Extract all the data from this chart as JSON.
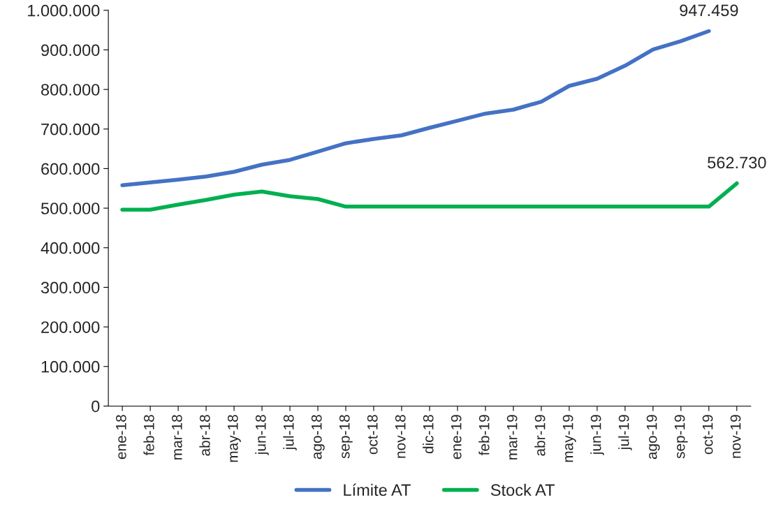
{
  "chart_data": {
    "type": "line",
    "categories": [
      "ene-18",
      "feb-18",
      "mar-18",
      "abr-18",
      "may-18",
      "jun-18",
      "jul-18",
      "ago-18",
      "sep-18",
      "oct-18",
      "nov-18",
      "dic-18",
      "ene-19",
      "feb-19",
      "mar-19",
      "abr-19",
      "may-19",
      "jun-19",
      "jul-19",
      "ago-19",
      "sep-19",
      "oct-19",
      "nov-19"
    ],
    "series": [
      {
        "name": "Límite AT",
        "color": "#4472c4",
        "values": [
          558000,
          565000,
          572000,
          580000,
          592000,
          610000,
          622000,
          643000,
          664000,
          675000,
          684000,
          703000,
          721000,
          739000,
          749000,
          769000,
          809000,
          827000,
          860000,
          901000,
          922000,
          947459,
          null
        ],
        "value_labels": [
          null,
          null,
          null,
          null,
          null,
          null,
          null,
          null,
          null,
          null,
          null,
          null,
          null,
          null,
          null,
          null,
          null,
          null,
          null,
          null,
          null,
          "947.459",
          null
        ]
      },
      {
        "name": "Stock AT",
        "color": "#00b050",
        "values": [
          496000,
          496000,
          509000,
          521000,
          534000,
          542000,
          530000,
          523000,
          504000,
          504000,
          504000,
          504000,
          504000,
          504000,
          504000,
          504000,
          504000,
          504000,
          504000,
          504000,
          504000,
          504000,
          562730
        ],
        "value_labels": [
          null,
          null,
          null,
          null,
          null,
          null,
          null,
          null,
          null,
          null,
          null,
          null,
          null,
          null,
          null,
          null,
          null,
          null,
          null,
          null,
          null,
          null,
          "562.730"
        ]
      }
    ],
    "ylim": [
      0,
      1000000
    ],
    "yticks": [
      0,
      {
        "value": 100000,
        "label": "100.000"
      },
      {
        "value": 200000,
        "label": "200.000"
      },
      {
        "value": 300000,
        "label": "300.000"
      },
      {
        "value": 400000,
        "label": "400.000"
      },
      {
        "value": 500000,
        "label": "500.000"
      },
      {
        "value": 600000,
        "label": "600.000"
      },
      {
        "value": 700000,
        "label": "700.000"
      },
      {
        "value": 800000,
        "label": "800.000"
      },
      {
        "value": 900000,
        "label": "900.000"
      },
      {
        "value": 1000000,
        "label": "1.000.000"
      }
    ],
    "grid": false,
    "legend": "bottom",
    "marker": "none",
    "line_style": "solid"
  }
}
